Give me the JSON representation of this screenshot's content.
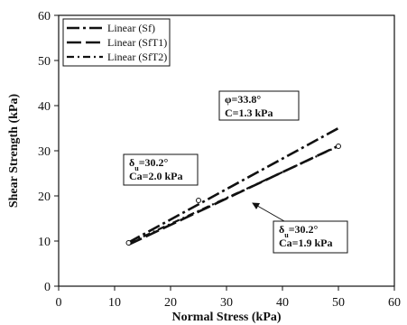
{
  "chart_data": {
    "type": "line",
    "xlabel": "Normal Stress (kPa)",
    "ylabel": "Shear Strength (kPa)",
    "xlim": [
      0,
      60
    ],
    "ylim": [
      0,
      60
    ],
    "x_ticks": [
      0,
      10,
      20,
      30,
      40,
      50,
      60
    ],
    "x_tick_labels": [
      "0",
      "10",
      "20",
      "30",
      "40",
      "50",
      "60"
    ],
    "y_ticks": [
      0,
      10,
      20,
      30,
      40,
      50,
      60
    ],
    "y_tick_labels": [
      "0",
      "10",
      "20",
      "30",
      "40",
      "50",
      "60"
    ],
    "grid": false,
    "legend_position": "top-left",
    "series": [
      {
        "name": "Linear (Sf)",
        "x": [
          12.5,
          50
        ],
        "y": [
          9.7,
          35.0
        ],
        "dash": "dashdot"
      },
      {
        "name": "Linear (SfT1)",
        "x": [
          12.5,
          50
        ],
        "y": [
          9.2,
          31.1
        ],
        "dash": "longdash"
      },
      {
        "name": "Linear (SfT2)",
        "x": [
          12.5,
          50
        ],
        "y": [
          9.5,
          31.0
        ],
        "dash": "dashdot-fine"
      }
    ],
    "points": [
      {
        "x": 12.5,
        "y": 9.6
      },
      {
        "x": 25,
        "y": 19
      },
      {
        "x": 50,
        "y": 31
      }
    ],
    "annotations": [
      {
        "lines": [
          "φ=33.8°",
          "C=1.3 kPa"
        ],
        "target": {
          "x": 41,
          "y": 27
        }
      },
      {
        "lines": [
          "δ_u=30.2°",
          "Ca=2.0 kPa"
        ],
        "target": {
          "x": 27,
          "y": 18
        }
      },
      {
        "lines": [
          "δ_u=30.2°",
          "Ca=1.9 kPa"
        ],
        "target": {
          "x": 35,
          "y": 22
        }
      }
    ]
  }
}
